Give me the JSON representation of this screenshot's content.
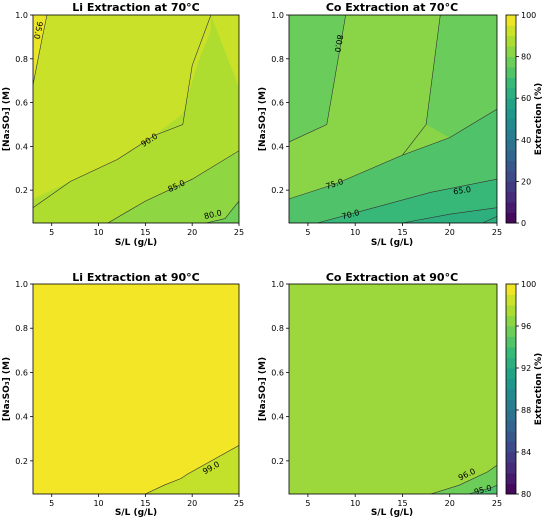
{
  "colors": {
    "viridis": [
      "#440154",
      "#482878",
      "#3e4989",
      "#31688e",
      "#26828e",
      "#1f9e89",
      "#35b779",
      "#6ece58",
      "#b5de2b",
      "#fde725"
    ]
  },
  "chart_data": [
    {
      "type": "contour",
      "title": "Li Extraction at 70°C",
      "xlabel": "S/L (g/L)",
      "ylabel": "[Na₂SO₃] (M)",
      "xlim": [
        3,
        25
      ],
      "ylim": [
        0.05,
        1.0
      ],
      "xticks": [
        "5",
        "10",
        "15",
        "20",
        "25"
      ],
      "yticks": [
        "0.2",
        "0.4",
        "0.6",
        "0.8",
        "1.0"
      ],
      "color_scale": [
        0,
        100
      ],
      "background_level": 92,
      "regions": [
        {
          "level": 97,
          "points": [
            [
              3,
              0.7
            ],
            [
              3,
              1.0
            ],
            [
              4.5,
              1.0
            ],
            [
              4.0,
              0.9
            ]
          ]
        },
        {
          "level": 88,
          "points": [
            [
              25,
              0.05
            ],
            [
              25,
              0.67
            ],
            [
              22,
              1.0
            ],
            [
              22,
              0.93
            ],
            [
              20.5,
              0.77
            ],
            [
              19,
              0.55
            ],
            [
              16,
              0.45
            ],
            [
              12,
              0.34
            ],
            [
              7,
              0.24
            ],
            [
              3,
              0.16
            ],
            [
              3,
              0.05
            ]
          ]
        },
        {
          "level": 83,
          "points": [
            [
              25,
              0.05
            ],
            [
              25,
              0.38
            ],
            [
              20,
              0.25
            ],
            [
              15,
              0.15
            ],
            [
              11,
              0.05
            ]
          ]
        },
        {
          "level": 78,
          "points": [
            [
              25,
              0.05
            ],
            [
              25,
              0.15
            ],
            [
              23.5,
              0.07
            ],
            [
              21.5,
              0.05
            ]
          ]
        }
      ],
      "contours": [
        {
          "label": "95.0",
          "points": [
            [
              3,
              0.68
            ],
            [
              4.0,
              0.9
            ],
            [
              4.5,
              1.0
            ]
          ],
          "label_at": [
            3.6,
            0.93
          ]
        },
        {
          "label": "90.0",
          "points": [
            [
              3,
              0.12
            ],
            [
              7,
              0.24
            ],
            [
              12,
              0.34
            ],
            [
              16,
              0.45
            ],
            [
              19,
              0.5
            ],
            [
              20,
              0.77
            ],
            [
              22,
              1.0
            ]
          ],
          "label_at": [
            15.4,
            0.43
          ]
        },
        {
          "label": "85.0",
          "points": [
            [
              11,
              0.05
            ],
            [
              15,
              0.15
            ],
            [
              20,
              0.25
            ],
            [
              25,
              0.38
            ]
          ],
          "label_at": [
            18.3,
            0.22
          ]
        },
        {
          "label": "80.0",
          "points": [
            [
              21.5,
              0.05
            ],
            [
              23.5,
              0.07
            ],
            [
              25,
              0.15
            ]
          ],
          "label_at": [
            22.2,
            0.09
          ]
        }
      ]
    },
    {
      "type": "contour",
      "title": "Co Extraction at 70°C",
      "xlabel": "S/L (g/L)",
      "ylabel": "[Na₂SO₃] (M)",
      "xlim": [
        3,
        25
      ],
      "ylim": [
        0.05,
        1.0
      ],
      "xticks": [
        "5",
        "10",
        "15",
        "20",
        "25"
      ],
      "yticks": [
        "0.2",
        "0.4",
        "0.6",
        "0.8",
        "1.0"
      ],
      "color_scale": [
        0,
        100
      ],
      "background_level": 82,
      "regions": [
        {
          "level": 77,
          "points": [
            [
              3,
              0.05
            ],
            [
              3,
              0.42
            ],
            [
              7,
              0.5
            ],
            [
              9,
              1.0
            ],
            [
              3,
              1.0
            ],
            [
              3,
              0.05
            ]
          ]
        },
        {
          "level": 72,
          "points": [
            [
              3,
              0.05
            ],
            [
              3,
              0.16
            ],
            [
              8,
              0.23
            ],
            [
              15,
              0.36
            ],
            [
              20,
              0.44
            ],
            [
              25,
              0.57
            ],
            [
              25,
              0.05
            ]
          ]
        },
        {
          "level": 67,
          "points": [
            [
              6,
              0.05
            ],
            [
              12,
              0.12
            ],
            [
              18,
              0.19
            ],
            [
              25,
              0.25
            ],
            [
              25,
              0.05
            ]
          ]
        },
        {
          "level": 63,
          "points": [
            [
              15,
              0.05
            ],
            [
              20,
              0.09
            ],
            [
              25,
              0.12
            ],
            [
              25,
              0.05
            ]
          ]
        },
        {
          "level": 77,
          "points": [
            [
              25,
              0.57
            ],
            [
              20,
              0.44
            ],
            [
              17.5,
              0.5
            ],
            [
              19,
              1.0
            ],
            [
              25,
              1.0
            ]
          ]
        }
      ],
      "contours": [
        {
          "label": "80.0",
          "points": [
            [
              7,
              0.5
            ],
            [
              9,
              1.0
            ]
          ],
          "label_at": [
            8.3,
            0.87
          ]
        },
        {
          "label": "",
          "points": [
            [
              3,
              0.42
            ],
            [
              7,
              0.5
            ]
          ],
          "label_at": null
        },
        {
          "label": "75.0",
          "points": [
            [
              3,
              0.16
            ],
            [
              8,
              0.23
            ],
            [
              15,
              0.36
            ],
            [
              20,
              0.44
            ],
            [
              25,
              0.57
            ]
          ],
          "label_at": [
            7.8,
            0.23
          ]
        },
        {
          "label": "",
          "points": [
            [
              15,
              0.36
            ],
            [
              17.5,
              0.5
            ],
            [
              19,
              1.0
            ]
          ],
          "label_at": null
        },
        {
          "label": "70.0",
          "points": [
            [
              6,
              0.05
            ],
            [
              12,
              0.12
            ],
            [
              18,
              0.19
            ],
            [
              25,
              0.25
            ]
          ],
          "label_at": [
            9.5,
            0.09
          ]
        },
        {
          "label": "65.0",
          "points": [
            [
              15,
              0.05
            ],
            [
              20,
              0.09
            ],
            [
              25,
              0.12
            ]
          ],
          "label_at": [
            21.3,
            0.2
          ]
        },
        {
          "label": "",
          "points": [
            [
              23.5,
              0.05
            ],
            [
              25,
              0.08
            ]
          ],
          "label_at": null
        }
      ]
    },
    {
      "type": "contour",
      "title": "Li Extraction at 90°C",
      "xlabel": "S/L (g/L)",
      "ylabel": "[Na₂SO₃] (M)",
      "xlim": [
        3,
        25
      ],
      "ylim": [
        0.05,
        1.0
      ],
      "xticks": [
        "5",
        "10",
        "15",
        "20",
        "25"
      ],
      "yticks": [
        "0.2",
        "0.4",
        "0.6",
        "0.8",
        "1.0"
      ],
      "color_scale": [
        80,
        100
      ],
      "background_level": 99.7,
      "regions": [
        {
          "level": 98.2,
          "points": [
            [
              15,
              0.05
            ],
            [
              17,
              0.09
            ],
            [
              18.8,
              0.12
            ],
            [
              19.5,
              0.14
            ],
            [
              25,
              0.27
            ],
            [
              25,
              0.05
            ]
          ]
        }
      ],
      "contours": [
        {
          "label": "99.0",
          "points": [
            [
              15,
              0.05
            ],
            [
              17,
              0.09
            ],
            [
              18.8,
              0.12
            ],
            [
              19.5,
              0.14
            ],
            [
              25,
              0.27
            ]
          ],
          "label_at": [
            22.0,
            0.17
          ]
        }
      ]
    },
    {
      "type": "contour",
      "title": "Co Extraction at 90°C",
      "xlabel": "S/L (g/L)",
      "ylabel": "[Na₂SO₃] (M)",
      "xlim": [
        3,
        25
      ],
      "ylim": [
        0.05,
        1.0
      ],
      "xticks": [
        "5",
        "10",
        "15",
        "20",
        "25"
      ],
      "yticks": [
        "0.2",
        "0.4",
        "0.6",
        "0.8",
        "1.0"
      ],
      "color_scale": [
        80,
        100
      ],
      "colorbar_ticks": [
        "80",
        "84",
        "88",
        "92",
        "96",
        "100"
      ],
      "colorbar_label": "Extraction (%)",
      "background_level": 97,
      "regions": [
        {
          "level": 95.5,
          "points": [
            [
              18,
              0.05
            ],
            [
              21,
              0.09
            ],
            [
              24,
              0.15
            ],
            [
              25,
              0.18
            ],
            [
              25,
              0.05
            ]
          ]
        },
        {
          "level": 94.3,
          "points": [
            [
              22,
              0.05
            ],
            [
              24.5,
              0.08
            ],
            [
              25,
              0.09
            ],
            [
              25,
              0.05
            ]
          ]
        }
      ],
      "contours": [
        {
          "label": "96.0",
          "points": [
            [
              18,
              0.05
            ],
            [
              21,
              0.09
            ],
            [
              24,
              0.15
            ],
            [
              25,
              0.18
            ]
          ],
          "label_at": [
            21.8,
            0.14
          ]
        },
        {
          "label": "95.0",
          "points": [
            [
              22,
              0.05
            ],
            [
              24.5,
              0.08
            ],
            [
              25,
              0.09
            ]
          ],
          "label_at": [
            23.5,
            0.07
          ]
        }
      ]
    }
  ],
  "colorbars": [
    {
      "ticks": [
        "0",
        "20",
        "40",
        "60",
        "80",
        "100"
      ],
      "range": [
        0,
        100
      ],
      "label": "Extraction (%)"
    },
    {
      "ticks": [
        "80",
        "84",
        "88",
        "92",
        "96",
        "100"
      ],
      "range": [
        80,
        100
      ],
      "label": "Extraction (%)"
    }
  ]
}
